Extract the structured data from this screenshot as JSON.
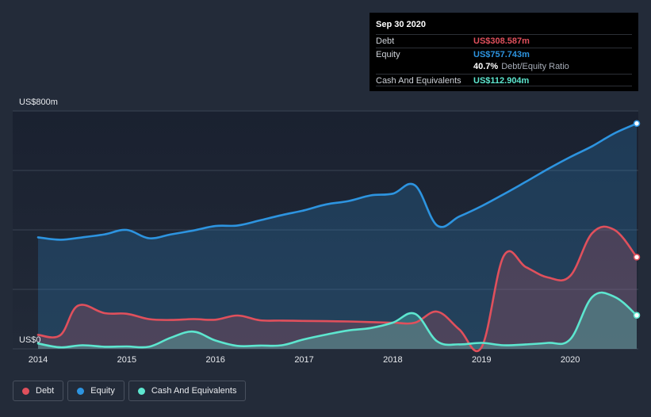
{
  "tooltip": {
    "date": "Sep 30 2020",
    "debt_label": "Debt",
    "debt_value": "US$308.587m",
    "equity_label": "Equity",
    "equity_value": "US$757.743m",
    "ratio_pct": "40.7%",
    "ratio_text": "Debt/Equity Ratio",
    "cash_label": "Cash And Equivalents",
    "cash_value": "US$112.904m"
  },
  "legend": {
    "debt": "Debt",
    "equity": "Equity",
    "cash": "Cash And Equivalents"
  },
  "colors": {
    "debt": "#e0505c",
    "equity": "#2d94e0",
    "cash": "#5de6cf",
    "background": "#232b39",
    "gridline": "#3a4352"
  },
  "chart_data": {
    "type": "area",
    "ylabel_top": "US$800m",
    "ylabel_bottom": "US$0",
    "ylim": [
      0,
      800
    ],
    "xlim": [
      2014.0,
      2020.75
    ],
    "xticks": [
      "2014",
      "2015",
      "2016",
      "2017",
      "2018",
      "2019",
      "2020"
    ],
    "grid": true,
    "legend_position": "bottom-left",
    "series": [
      {
        "name": "Equity",
        "key": "equity",
        "x": [
          2014.0,
          2014.25,
          2014.5,
          2014.75,
          2015.0,
          2015.25,
          2015.5,
          2015.75,
          2016.0,
          2016.25,
          2016.5,
          2016.75,
          2017.0,
          2017.25,
          2017.5,
          2017.75,
          2018.0,
          2018.25,
          2018.5,
          2018.75,
          2019.0,
          2019.25,
          2019.5,
          2019.75,
          2020.0,
          2020.25,
          2020.5,
          2020.75
        ],
        "values": [
          375,
          367,
          375,
          385,
          400,
          372,
          385,
          398,
          413,
          415,
          432,
          450,
          466,
          486,
          497,
          516,
          522,
          550,
          415,
          445,
          480,
          520,
          562,
          605,
          645,
          682,
          725,
          758
        ]
      },
      {
        "name": "Debt",
        "key": "debt",
        "x": [
          2014.0,
          2014.25,
          2014.45,
          2014.75,
          2015.0,
          2015.25,
          2015.5,
          2015.75,
          2016.0,
          2016.25,
          2016.5,
          2016.75,
          2017.0,
          2017.25,
          2017.5,
          2017.75,
          2018.0,
          2018.25,
          2018.5,
          2018.75,
          2019.0,
          2019.25,
          2019.5,
          2019.75,
          2020.0,
          2020.25,
          2020.5,
          2020.75
        ],
        "values": [
          47,
          46,
          145,
          120,
          118,
          100,
          97,
          100,
          98,
          112,
          96,
          95,
          94,
          93,
          92,
          90,
          88,
          88,
          125,
          65,
          5,
          312,
          275,
          240,
          245,
          390,
          400,
          308.587
        ]
      },
      {
        "name": "Cash And Equivalents",
        "key": "cash",
        "x": [
          2014.0,
          2014.25,
          2014.5,
          2014.75,
          2015.0,
          2015.25,
          2015.5,
          2015.75,
          2016.0,
          2016.25,
          2016.5,
          2016.75,
          2017.0,
          2017.25,
          2017.5,
          2017.75,
          2018.0,
          2018.25,
          2018.5,
          2018.75,
          2019.0,
          2019.25,
          2019.5,
          2019.75,
          2020.0,
          2020.25,
          2020.5,
          2020.75
        ],
        "values": [
          18,
          5,
          12,
          7,
          8,
          7,
          38,
          58,
          28,
          10,
          11,
          12,
          32,
          48,
          62,
          70,
          88,
          118,
          25,
          15,
          20,
          12,
          15,
          20,
          32,
          175,
          175,
          112.904
        ]
      }
    ]
  }
}
